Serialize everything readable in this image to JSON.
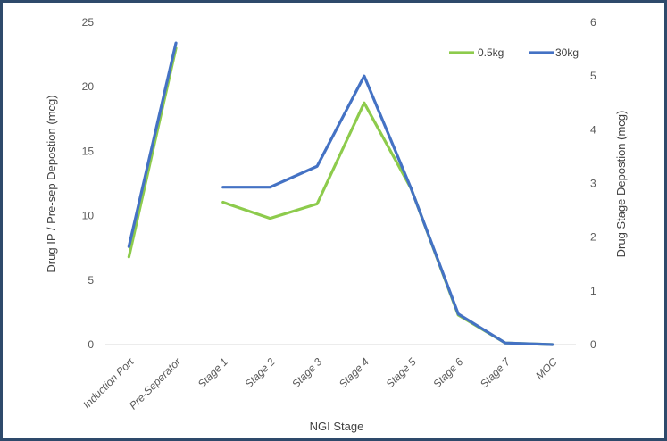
{
  "chart_data": {
    "type": "line",
    "categories": [
      "Induction Port",
      "Pre-Seperator",
      "Stage 1",
      "Stage 2",
      "Stage 3",
      "Stage 4",
      "Stage 5",
      "Stage 6",
      "Stage 7",
      "MOC"
    ],
    "xlabel": "NGI Stage",
    "ylabel_left": "Drug IP / Pre-sep Depostion (mcg)",
    "ylabel_right": "Drug Stage Depostion (mcg)",
    "ylim_left": [
      0,
      25
    ],
    "ylim_right": [
      0,
      6
    ],
    "yticks_left": [
      "0",
      "5",
      "10",
      "15",
      "20",
      "25"
    ],
    "yticks_right": [
      "0",
      "1",
      "2",
      "3",
      "4",
      "5",
      "6"
    ],
    "grid": false,
    "legend_position": "top-right",
    "series": [
      {
        "name": "0.5kg",
        "color": "#8DCB4C",
        "left_axis_segment": {
          "categories": [
            "Induction Port",
            "Pre-Seperator"
          ],
          "values": [
            6.8,
            23
          ]
        },
        "right_axis_segment": {
          "categories": [
            "Stage 1",
            "Stage 2",
            "Stage 3",
            "Stage 4",
            "Stage 5",
            "Stage 6",
            "Stage 7",
            "MOC"
          ],
          "values": [
            2.65,
            2.35,
            2.62,
            4.5,
            2.9,
            0.55,
            0.03,
            0.0
          ]
        }
      },
      {
        "name": "30kg",
        "color": "#4472C4",
        "left_axis_segment": {
          "categories": [
            "Induction Port",
            "Pre-Seperator"
          ],
          "values": [
            7.6,
            23.4
          ]
        },
        "right_axis_segment": {
          "categories": [
            "Stage 1",
            "Stage 2",
            "Stage 3",
            "Stage 4",
            "Stage 5",
            "Stage 6",
            "Stage 7",
            "MOC"
          ],
          "values": [
            2.93,
            2.93,
            3.32,
            5.0,
            2.9,
            0.57,
            0.03,
            0.0
          ]
        }
      }
    ]
  }
}
